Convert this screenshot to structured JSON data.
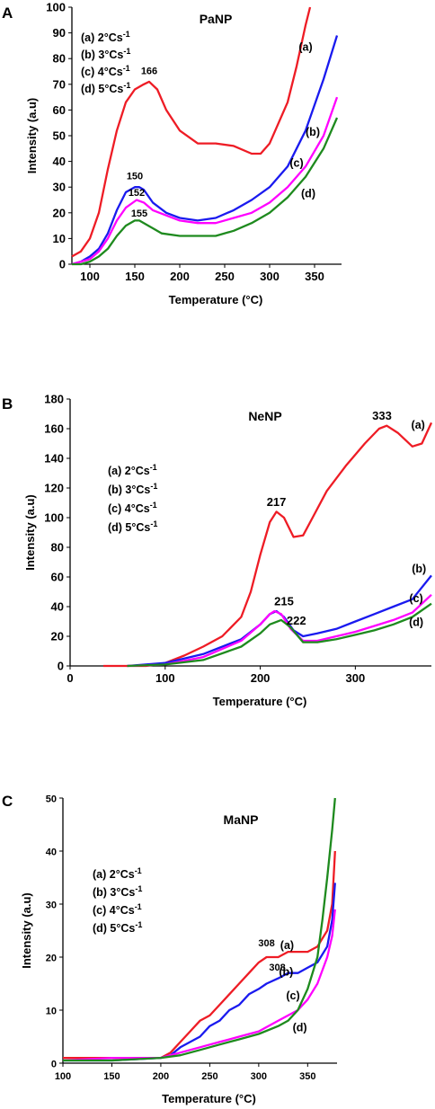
{
  "chart_data": [
    {
      "type": "line",
      "panel_letter": "A",
      "title": "PaNP",
      "xlabel": "Temperature (°C)",
      "ylabel": "Intensity (a.u)",
      "xlim": [
        80,
        380
      ],
      "ylim": [
        0,
        100
      ],
      "xticks": [
        100,
        150,
        200,
        250,
        300,
        350
      ],
      "yticks": [
        0,
        10,
        20,
        30,
        40,
        50,
        60,
        70,
        80,
        90,
        100
      ],
      "grid": false,
      "legend_position": "top-left",
      "legend": [
        "(a) 2°Cs-1",
        "(b) 3°Cs-1",
        "(c) 4°Cs-1",
        "(d) 5°Cs-1"
      ],
      "series": [
        {
          "name": "(a)",
          "color": "#ee1c25",
          "x": [
            80,
            90,
            100,
            110,
            120,
            130,
            140,
            150,
            160,
            166,
            175,
            185,
            200,
            220,
            240,
            260,
            280,
            290,
            300,
            310,
            320,
            330,
            340,
            345
          ],
          "y": [
            3,
            5,
            10,
            20,
            37,
            52,
            63,
            68,
            70,
            71,
            68,
            60,
            52,
            47,
            47,
            46,
            43,
            43,
            47,
            55,
            63,
            77,
            93,
            100
          ]
        },
        {
          "name": "(b)",
          "color": "#1a1aef",
          "x": [
            80,
            90,
            100,
            110,
            120,
            130,
            140,
            150,
            155,
            160,
            170,
            185,
            200,
            220,
            240,
            260,
            280,
            300,
            320,
            340,
            360,
            375
          ],
          "y": [
            0,
            1,
            3,
            6,
            12,
            21,
            28,
            30,
            30,
            29,
            24,
            20,
            18,
            17,
            18,
            21,
            25,
            30,
            38,
            52,
            72,
            89
          ]
        },
        {
          "name": "(c)",
          "color": "#ff00ff",
          "x": [
            80,
            90,
            100,
            110,
            120,
            130,
            140,
            152,
            160,
            170,
            185,
            200,
            220,
            240,
            260,
            280,
            300,
            320,
            340,
            360,
            375
          ],
          "y": [
            0,
            1,
            2,
            5,
            10,
            17,
            22,
            25,
            24,
            21,
            19,
            17,
            16,
            16,
            18,
            20,
            24,
            30,
            38,
            50,
            65
          ]
        },
        {
          "name": "(d)",
          "color": "#1e8a1e",
          "x": [
            80,
            90,
            100,
            110,
            120,
            130,
            140,
            150,
            155,
            165,
            180,
            200,
            220,
            240,
            260,
            280,
            300,
            320,
            340,
            360,
            375
          ],
          "y": [
            0,
            0,
            1,
            3,
            6,
            11,
            15,
            17,
            17,
            15,
            12,
            11,
            11,
            11,
            13,
            16,
            20,
            26,
            34,
            45,
            57
          ]
        }
      ],
      "curve_labels": [
        {
          "text": "(a)",
          "x": 340,
          "y": 83
        },
        {
          "text": "(b)",
          "x": 348,
          "y": 50
        },
        {
          "text": "(c)",
          "x": 330,
          "y": 38
        },
        {
          "text": "(d)",
          "x": 343,
          "y": 26
        }
      ],
      "peak_labels": [
        {
          "text": "166",
          "x": 166,
          "y": 74
        },
        {
          "text": "150",
          "x": 150,
          "y": 33
        },
        {
          "text": "152",
          "x": 152,
          "y": 26.5
        },
        {
          "text": "155",
          "x": 155,
          "y": 18.5
        }
      ]
    },
    {
      "type": "line",
      "panel_letter": "B",
      "title": "NeNP",
      "xlabel": "Temperature (°C)",
      "ylabel": "Intensity (a.u)",
      "xlim": [
        0,
        380
      ],
      "ylim": [
        0,
        180
      ],
      "xticks": [
        0,
        100,
        200,
        300
      ],
      "yticks": [
        0,
        20,
        40,
        60,
        80,
        100,
        120,
        140,
        160,
        180
      ],
      "grid": false,
      "legend_position": "middle-left",
      "legend": [
        "(a) 2°Cs-1",
        "(b) 3°Cs-1",
        "(c) 4°Cs-1",
        "(d) 5°Cs-1"
      ],
      "series": [
        {
          "name": "(a)",
          "color": "#ee1c25",
          "x": [
            35,
            60,
            80,
            100,
            120,
            140,
            160,
            180,
            190,
            200,
            210,
            217,
            225,
            235,
            245,
            255,
            270,
            290,
            310,
            325,
            333,
            345,
            360,
            370,
            380
          ],
          "y": [
            0,
            0,
            0,
            2,
            7,
            13,
            20,
            33,
            50,
            75,
            97,
            104,
            100,
            87,
            88,
            100,
            118,
            135,
            150,
            160,
            162,
            157,
            148,
            150,
            164
          ]
        },
        {
          "name": "(b)",
          "color": "#1a1aef",
          "x": [
            60,
            100,
            140,
            180,
            200,
            210,
            217,
            225,
            235,
            245,
            260,
            280,
            300,
            320,
            340,
            360,
            380
          ],
          "y": [
            0,
            2,
            8,
            18,
            28,
            35,
            37,
            33,
            24,
            20,
            22,
            25,
            30,
            35,
            40,
            45,
            61
          ]
        },
        {
          "name": "(c)",
          "color": "#ff00ff",
          "x": [
            60,
            100,
            140,
            180,
            200,
            210,
            215,
            222,
            232,
            245,
            260,
            280,
            300,
            320,
            340,
            360,
            380
          ],
          "y": [
            0,
            1,
            6,
            17,
            28,
            35,
            37,
            35,
            25,
            17,
            17,
            20,
            23,
            27,
            31,
            36,
            48
          ]
        },
        {
          "name": "(d)",
          "color": "#1e8a1e",
          "x": [
            60,
            100,
            140,
            180,
            200,
            210,
            222,
            232,
            245,
            260,
            280,
            300,
            320,
            340,
            360,
            380
          ],
          "y": [
            0,
            1,
            4,
            13,
            22,
            28,
            31,
            26,
            16,
            16,
            18,
            21,
            24,
            28,
            33,
            42
          ]
        }
      ],
      "curve_labels": [
        {
          "text": "(a)",
          "x": 366,
          "y": 160
        },
        {
          "text": "(b)",
          "x": 367,
          "y": 63
        },
        {
          "text": "(c)",
          "x": 364,
          "y": 43
        },
        {
          "text": "(d)",
          "x": 364,
          "y": 27
        }
      ],
      "peak_labels": [
        {
          "text": "217",
          "x": 217,
          "y": 108
        },
        {
          "text": "333",
          "x": 328,
          "y": 166
        },
        {
          "text": "215",
          "x": 225,
          "y": 41
        },
        {
          "text": "222",
          "x": 238,
          "y": 28
        }
      ]
    },
    {
      "type": "line",
      "panel_letter": "C",
      "title": "MaNP",
      "xlabel": "Temperature (°C)",
      "ylabel": "Intensity (a.u)",
      "xlim": [
        100,
        380
      ],
      "ylim": [
        0,
        50
      ],
      "xticks": [
        100,
        150,
        200,
        250,
        300,
        350
      ],
      "yticks": [
        0,
        10,
        20,
        30,
        40,
        50
      ],
      "grid": false,
      "legend_position": "middle-left",
      "legend": [
        "(a) 2°Cs-1",
        "(b) 3°Cs-1",
        "(c) 4°Cs-1",
        "(d) 5°Cs-1"
      ],
      "series": [
        {
          "name": "(a)",
          "color": "#ee1c25",
          "x": [
            100,
            150,
            200,
            210,
            220,
            230,
            240,
            250,
            260,
            270,
            280,
            290,
            300,
            308,
            320,
            330,
            340,
            350,
            360,
            370,
            375,
            378
          ],
          "y": [
            1,
            1,
            1,
            2,
            4,
            6,
            8,
            9,
            11,
            13,
            15,
            17,
            19,
            20,
            20,
            21,
            21,
            21,
            22,
            25,
            30,
            40
          ]
        },
        {
          "name": "(b)",
          "color": "#1a1aef",
          "x": [
            100,
            150,
            200,
            210,
            220,
            230,
            240,
            250,
            260,
            270,
            280,
            290,
            300,
            308,
            320,
            330,
            340,
            350,
            360,
            370,
            375,
            378
          ],
          "y": [
            0.5,
            0.5,
            1,
            1.5,
            3,
            4,
            5,
            7,
            8,
            10,
            11,
            13,
            14,
            15,
            16,
            17,
            17,
            18,
            19,
            22,
            27,
            34
          ]
        },
        {
          "name": "(c)",
          "color": "#ff00ff",
          "x": [
            100,
            150,
            200,
            220,
            240,
            260,
            280,
            300,
            320,
            330,
            340,
            350,
            360,
            370,
            375,
            378
          ],
          "y": [
            0.5,
            1,
            1,
            2,
            3,
            4,
            5,
            6,
            8,
            9,
            10,
            12,
            15,
            20,
            24,
            29
          ]
        },
        {
          "name": "(d)",
          "color": "#1e8a1e",
          "x": [
            100,
            150,
            200,
            220,
            240,
            260,
            280,
            300,
            320,
            330,
            340,
            350,
            360,
            365,
            370,
            375,
            378
          ],
          "y": [
            0.5,
            0.5,
            1,
            1.5,
            2.5,
            3.5,
            4.5,
            5.5,
            7,
            8,
            10,
            14,
            20,
            27,
            35,
            44,
            50
          ]
        }
      ],
      "curve_labels": [
        {
          "text": "(a)",
          "x": 329,
          "y": 21.5
        },
        {
          "text": "(b)",
          "x": 328,
          "y": 16.5
        },
        {
          "text": "(c)",
          "x": 335,
          "y": 12
        },
        {
          "text": "(d)",
          "x": 342,
          "y": 6
        }
      ],
      "peak_labels": [
        {
          "text": "308",
          "x": 308,
          "y": 22
        },
        {
          "text": "308",
          "x": 319,
          "y": 17.5
        }
      ]
    }
  ]
}
